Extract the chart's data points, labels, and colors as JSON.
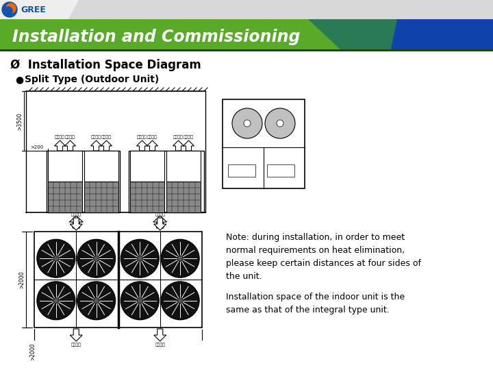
{
  "title": "Installation and Commissioning",
  "section_title": "Ø  Installation Space Diagram",
  "subsection": "l  Split Type (Outdoor Unit)",
  "note_line1": "Note: during installation, in order to meet",
  "note_line2": "normal requirements on heat elimination,",
  "note_line3": "please keep certain distances at four sides of",
  "note_line4": "the unit.",
  "note_line5": "Installation space of the indoor unit is the",
  "note_line6": "same as that of the integral type unit.",
  "bg_color": "#ffffff",
  "dim_top": ">3500",
  "dim_side": ">200",
  "dim_side2": ">2000",
  "dim_bottom": ">2000",
  "fan_label": "外机出风"
}
